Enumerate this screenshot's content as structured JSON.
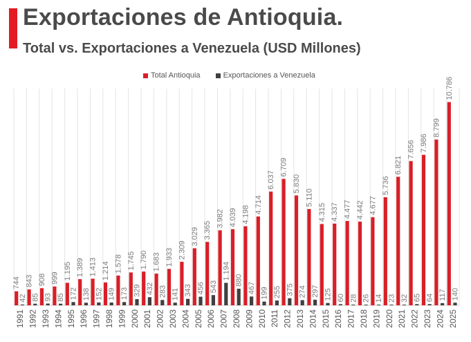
{
  "header": {
    "title": "Exportaciones de Antioquia.",
    "subtitle": "Total vs. Exportaciones a Venezuela (USD Millones)"
  },
  "colors": {
    "accent": "#e31b23",
    "total": "#d81f27",
    "venezuela": "#404040",
    "gridline": "#e3e3e3",
    "label": "#7a7a7a",
    "title": "#4a4a4a"
  },
  "chart_data": {
    "type": "bar",
    "title": "Exportaciones de Antioquia.",
    "subtitle": "Total vs. Exportaciones a Venezuela (USD Millones)",
    "xlabel": "",
    "ylabel": "",
    "ylim": [
      0,
      11500
    ],
    "grid": "vertical",
    "legend_position": "top-center",
    "categories": [
      "1991",
      "1992",
      "1993",
      "1994",
      "1995",
      "1996",
      "1997",
      "1998",
      "1999",
      "2000",
      "2001",
      "2002",
      "2003",
      "2004",
      "2005",
      "2006",
      "2007",
      "2008",
      "2009",
      "2010",
      "2011",
      "2012",
      "2013",
      "2014",
      "2015",
      "2016",
      "2017",
      "2018",
      "2019",
      "2020",
      "2021",
      "2022",
      "2023",
      "2024",
      "2025"
    ],
    "series": [
      {
        "name": "Total Antioquia",
        "values": [
          744,
          843,
          908,
          999,
          1195,
          1389,
          1413,
          1214,
          1578,
          1745,
          1790,
          1683,
          1933,
          2309,
          3029,
          3365,
          3982,
          4039,
          4198,
          4714,
          6037,
          6709,
          5830,
          5110,
          4315,
          4337,
          4477,
          4442,
          4677,
          5736,
          6821,
          7656,
          7986,
          8799,
          10786
        ],
        "labels": [
          "744",
          "843",
          "908",
          "999",
          "1.195",
          "1.389",
          "1.413",
          "1.214",
          "1.578",
          "1.745",
          "1.790",
          "1.683",
          "1.933",
          "2.309",
          "3.029",
          "3.365",
          "3.982",
          "4.039",
          "4.198",
          "4.714",
          "6.037",
          "6.709",
          "5.830",
          "5.110",
          "4.315",
          "4.337",
          "4.477",
          "4.442",
          "4.677",
          "5.736",
          "6.821",
          "7.656",
          "7.986",
          "8.799",
          "10.786"
        ]
      },
      {
        "name": "Exportaciones a Venezuela",
        "values": [
          42,
          85,
          93,
          85,
          172,
          138,
          152,
          149,
          173,
          329,
          432,
          283,
          141,
          343,
          456,
          543,
          1194,
          880,
          467,
          199,
          255,
          375,
          274,
          297,
          125,
          60,
          28,
          26,
          14,
          23,
          32,
          65,
          64,
          117,
          140
        ],
        "labels": [
          "42",
          "85",
          "93",
          "85",
          "172",
          "138",
          "152",
          "149",
          "173",
          "329",
          "432",
          "283",
          "141",
          "343",
          "456",
          "543",
          "1.194",
          "880",
          "467",
          "199",
          "255",
          "375",
          "274",
          "297",
          "125",
          "60",
          "28",
          "26",
          "14",
          "23",
          "32",
          "65",
          "64",
          "117",
          "140"
        ]
      }
    ]
  }
}
